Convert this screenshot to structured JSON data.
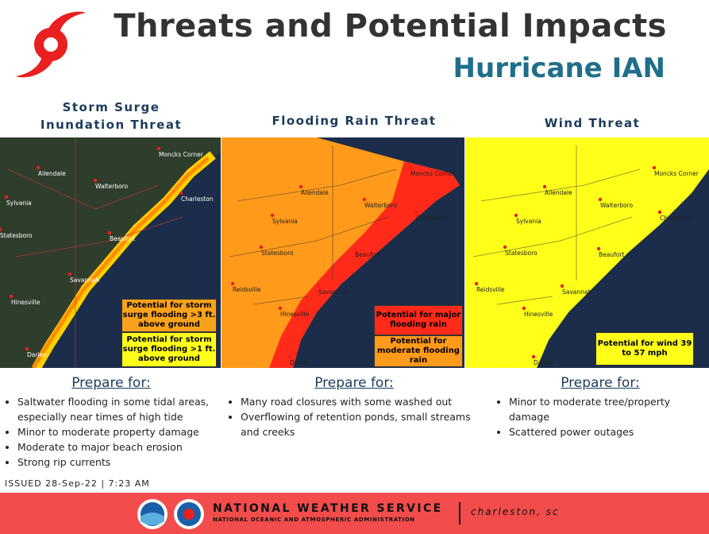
{
  "header": {
    "title": "Threats and Potential Impacts",
    "subtitle": "Hurricane IAN"
  },
  "panels": [
    {
      "title_lines": [
        "Storm Surge",
        "Inundation Threat"
      ],
      "legend": [
        "Potential for storm surge flooding >3 ft. above ground",
        "Potential for storm surge flooding >1 ft. above ground"
      ],
      "prepare_heading": "Prepare for:",
      "bullets": [
        "Saltwater flooding in some tidal areas, especially near times of high tide",
        "Minor to moderate property damage",
        "Moderate to major beach erosion",
        "Strong rip currents"
      ],
      "map_labels": [
        "Allendale",
        "Moncks Corner",
        "Walterboro",
        "Charleston",
        "Sylvania",
        "Statesboro",
        "Beaufort",
        "Savannah",
        "Hinesville",
        "Darien"
      ]
    },
    {
      "title_lines": [
        "Flooding Rain Threat"
      ],
      "legend": [
        "Potential for major flooding rain",
        "Potential for moderate flooding rain"
      ],
      "prepare_heading": "Prepare for:",
      "bullets": [
        "Many road closures with some washed out",
        "Overflowing of retention ponds, small streams and creeks"
      ],
      "map_labels": [
        "Allendale",
        "Moncks Corner",
        "Walterboro",
        "Charleston",
        "Sylvania",
        "Statesboro",
        "Beaufort",
        "Savannah",
        "Hinesville",
        "Darien",
        "Reidsville"
      ]
    },
    {
      "title_lines": [
        "Wind Threat"
      ],
      "legend": [
        "Potential for wind 39 to 57 mph"
      ],
      "prepare_heading": "Prepare for:",
      "bullets": [
        "Minor to moderate tree/property damage",
        "Scattered power outages"
      ],
      "map_labels": [
        "Allendale",
        "Moncks Corner",
        "Walterboro",
        "Charleston",
        "Sylvania",
        "Statesboro",
        "Beaufort",
        "Savannah",
        "Hinesville",
        "Darien",
        "Reidsville"
      ]
    }
  ],
  "issued": "ISSUED 28-Sep-22 | 7:23 AM",
  "footer": {
    "agency": "NATIONAL WEATHER SERVICE",
    "parent": "NATIONAL OCEANIC AND ATMOSPHERIC ADMINISTRATION",
    "office": "charleston, sc"
  }
}
